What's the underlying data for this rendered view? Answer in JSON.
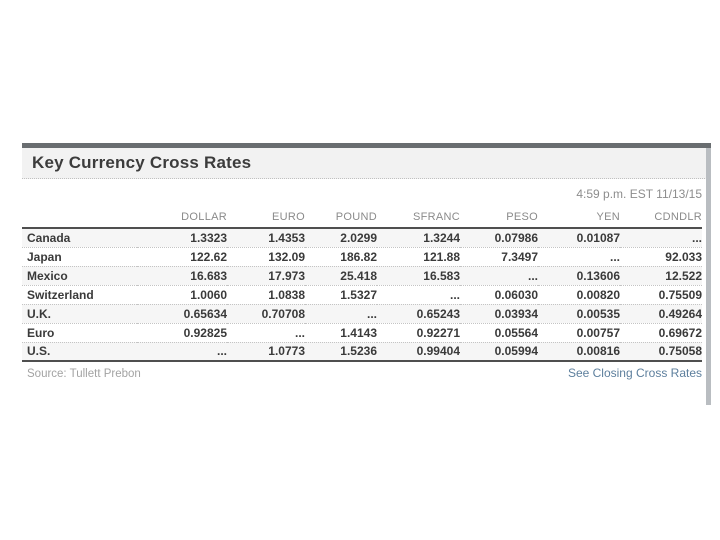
{
  "widget": {
    "title": "Key Currency Cross Rates",
    "timestamp": "4:59 p.m. EST 11/13/15",
    "source": "Source: Tullett Prebon",
    "closing_link": "See Closing Cross Rates"
  },
  "chart_data": {
    "type": "table",
    "title": "Key Currency Cross Rates",
    "columns": [
      "",
      "DOLLAR",
      "EURO",
      "POUND",
      "SFRANC",
      "PESO",
      "YEN",
      "CDNDLR"
    ],
    "rows": [
      {
        "label": "Canada",
        "values": [
          "1.3323",
          "1.4353",
          "2.0299",
          "1.3244",
          "0.07986",
          "0.01087",
          "..."
        ]
      },
      {
        "label": "Japan",
        "values": [
          "122.62",
          "132.09",
          "186.82",
          "121.88",
          "7.3497",
          "...",
          "92.033"
        ]
      },
      {
        "label": "Mexico",
        "values": [
          "16.683",
          "17.973",
          "25.418",
          "16.583",
          "...",
          "0.13606",
          "12.522"
        ]
      },
      {
        "label": "Switzerland",
        "values": [
          "1.0060",
          "1.0838",
          "1.5327",
          "...",
          "0.06030",
          "0.00820",
          "0.75509"
        ]
      },
      {
        "label": "U.K.",
        "values": [
          "0.65634",
          "0.70708",
          "...",
          "0.65243",
          "0.03934",
          "0.00535",
          "0.49264"
        ]
      },
      {
        "label": "Euro",
        "values": [
          "0.92825",
          "...",
          "1.4143",
          "0.92271",
          "0.05564",
          "0.00757",
          "0.69672"
        ]
      },
      {
        "label": "U.S.",
        "values": [
          "...",
          "1.0773",
          "1.5236",
          "0.99404",
          "0.05994",
          "0.00816",
          "0.75058"
        ]
      }
    ]
  },
  "colors": {
    "top_bar": "#696d70",
    "title_band_bg": "#f2f2f2",
    "title_text": "#3c3c3c",
    "timestamp_text": "#8d8d8d",
    "column_header_text": "#8a8a8a",
    "row_text": "#3a3a3a",
    "row_alt_bg": "#f6f6f6",
    "solid_border": "#4f4f4f",
    "dotted_border": "#c4c4c4",
    "source_text": "#a3a3a3",
    "link_text": "#5d7f9d",
    "scrollbar": "#b9bdc1"
  }
}
